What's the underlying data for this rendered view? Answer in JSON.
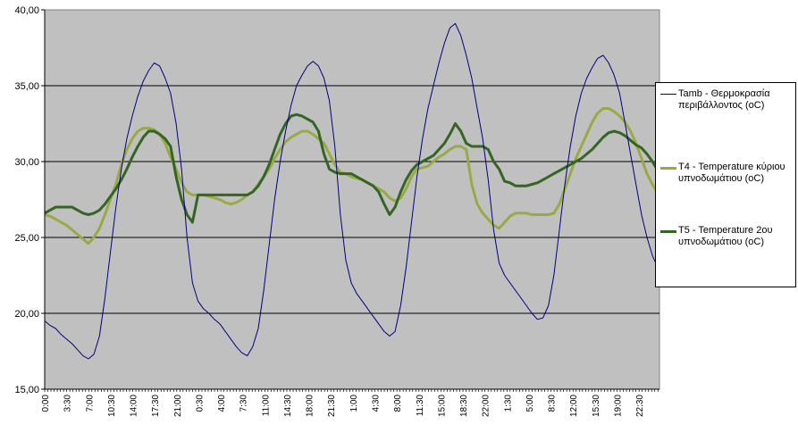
{
  "chart_data": {
    "type": "line",
    "ylim": [
      15,
      40
    ],
    "yticks": [
      "15,00",
      "20,00",
      "25,00",
      "30,00",
      "35,00",
      "40,00"
    ],
    "xticks": [
      "0:00",
      "3:30",
      "7:00",
      "10:30",
      "14:00",
      "17:30",
      "21:00",
      "0:30",
      "4:00",
      "7:30",
      "11:00",
      "14:30",
      "18:00",
      "21:30",
      "1:00",
      "4:30",
      "8:00",
      "11:30",
      "15:00",
      "18:30",
      "22:00",
      "1:30",
      "5:00",
      "8:30",
      "12:00",
      "15:30",
      "19:00",
      "22:30"
    ],
    "interval_minutes": 30,
    "grid": true,
    "legend_position": "right",
    "plot_background": "#c0c0c0",
    "series": [
      {
        "name": "Tamb - Θερμοκρασία περιβάλλοντος (oC)",
        "color": "#000080",
        "values": [
          19.5,
          19.2,
          19.0,
          18.6,
          18.3,
          18.0,
          17.6,
          17.2,
          17.0,
          17.3,
          18.5,
          21.0,
          24.0,
          27.0,
          29.5,
          31.5,
          33.0,
          34.3,
          35.3,
          36.0,
          36.5,
          36.3,
          35.5,
          34.5,
          32.5,
          29.5,
          25.0,
          22.0,
          20.8,
          20.3,
          20.0,
          19.6,
          19.3,
          18.8,
          18.3,
          17.8,
          17.4,
          17.2,
          17.8,
          19.0,
          21.5,
          24.5,
          27.5,
          30.0,
          32.0,
          33.7,
          35.0,
          35.7,
          36.3,
          36.6,
          36.3,
          35.5,
          34.0,
          31.0,
          26.5,
          23.5,
          22.0,
          21.3,
          20.8,
          20.3,
          19.8,
          19.3,
          18.8,
          18.5,
          18.8,
          20.5,
          23.0,
          26.0,
          29.0,
          31.5,
          33.5,
          35.0,
          36.5,
          37.8,
          38.8,
          39.1,
          38.3,
          37.0,
          35.5,
          33.5,
          31.5,
          28.8,
          25.5,
          23.3,
          22.5,
          22.0,
          21.5,
          21.0,
          20.5,
          20.0,
          19.6,
          19.7,
          20.5,
          22.5,
          25.5,
          28.5,
          31.0,
          33.0,
          34.5,
          35.5,
          36.2,
          36.8,
          37.0,
          36.5,
          35.7,
          34.5,
          32.5,
          30.5,
          28.5,
          26.5,
          25.0,
          23.8,
          23.0
        ]
      },
      {
        "name": "T4 - Temperature κύριου υπνοδωμάτιου (oC)",
        "color": "#99aa44",
        "values": [
          26.5,
          26.4,
          26.2,
          26.0,
          25.8,
          25.5,
          25.2,
          24.9,
          24.6,
          25.0,
          25.6,
          26.5,
          27.5,
          28.5,
          29.8,
          30.8,
          31.5,
          32.0,
          32.2,
          32.2,
          32.1,
          31.8,
          31.2,
          30.3,
          29.5,
          28.6,
          28.0,
          27.8,
          27.8,
          27.8,
          27.7,
          27.6,
          27.5,
          27.3,
          27.2,
          27.3,
          27.5,
          27.8,
          28.0,
          28.5,
          29.0,
          29.5,
          30.2,
          30.8,
          31.3,
          31.6,
          31.8,
          32.0,
          32.0,
          31.8,
          31.5,
          31.2,
          30.5,
          29.8,
          29.3,
          29.2,
          29.0,
          28.9,
          28.8,
          28.6,
          28.4,
          28.2,
          28.0,
          27.6,
          27.4,
          27.6,
          28.2,
          29.0,
          29.5,
          29.6,
          29.7,
          30.0,
          30.3,
          30.5,
          30.8,
          31.0,
          31.0,
          30.8,
          28.5,
          27.2,
          26.6,
          26.2,
          25.8,
          25.6,
          26.0,
          26.4,
          26.6,
          26.6,
          26.6,
          26.5,
          26.5,
          26.5,
          26.5,
          26.6,
          27.2,
          28.2,
          29.2,
          30.2,
          31.0,
          31.8,
          32.6,
          33.2,
          33.5,
          33.5,
          33.3,
          33.0,
          32.6,
          32.0,
          31.2,
          30.2,
          29.2,
          28.5,
          27.9
        ]
      },
      {
        "name": "T5 - Temperature 2ου υπνοδωμάτιου (oC)",
        "color": "#336622",
        "values": [
          26.6,
          26.8,
          27.0,
          27.0,
          27.0,
          27.0,
          26.8,
          26.6,
          26.5,
          26.6,
          26.8,
          27.2,
          27.7,
          28.2,
          28.8,
          29.5,
          30.3,
          31.0,
          31.6,
          32.0,
          32.0,
          31.8,
          31.5,
          31.0,
          29.0,
          27.5,
          26.5,
          26.0,
          27.8,
          27.8,
          27.8,
          27.8,
          27.8,
          27.8,
          27.8,
          27.8,
          27.8,
          27.8,
          28.0,
          28.4,
          29.0,
          29.8,
          30.8,
          31.8,
          32.5,
          33.0,
          33.1,
          33.0,
          32.8,
          32.6,
          32.0,
          30.5,
          29.5,
          29.3,
          29.2,
          29.2,
          29.2,
          29.0,
          28.8,
          28.6,
          28.4,
          28.0,
          27.2,
          26.5,
          27.0,
          28.0,
          28.8,
          29.4,
          29.8,
          30.0,
          30.2,
          30.4,
          30.8,
          31.2,
          31.8,
          32.5,
          32.0,
          31.2,
          31.0,
          31.0,
          31.0,
          30.8,
          30.0,
          29.5,
          28.7,
          28.6,
          28.4,
          28.4,
          28.4,
          28.5,
          28.6,
          28.8,
          29.0,
          29.2,
          29.4,
          29.6,
          29.8,
          30.0,
          30.2,
          30.5,
          30.8,
          31.2,
          31.6,
          31.9,
          32.0,
          31.9,
          31.7,
          31.4,
          31.1,
          30.9,
          30.5,
          30.0,
          29.4
        ]
      }
    ]
  }
}
